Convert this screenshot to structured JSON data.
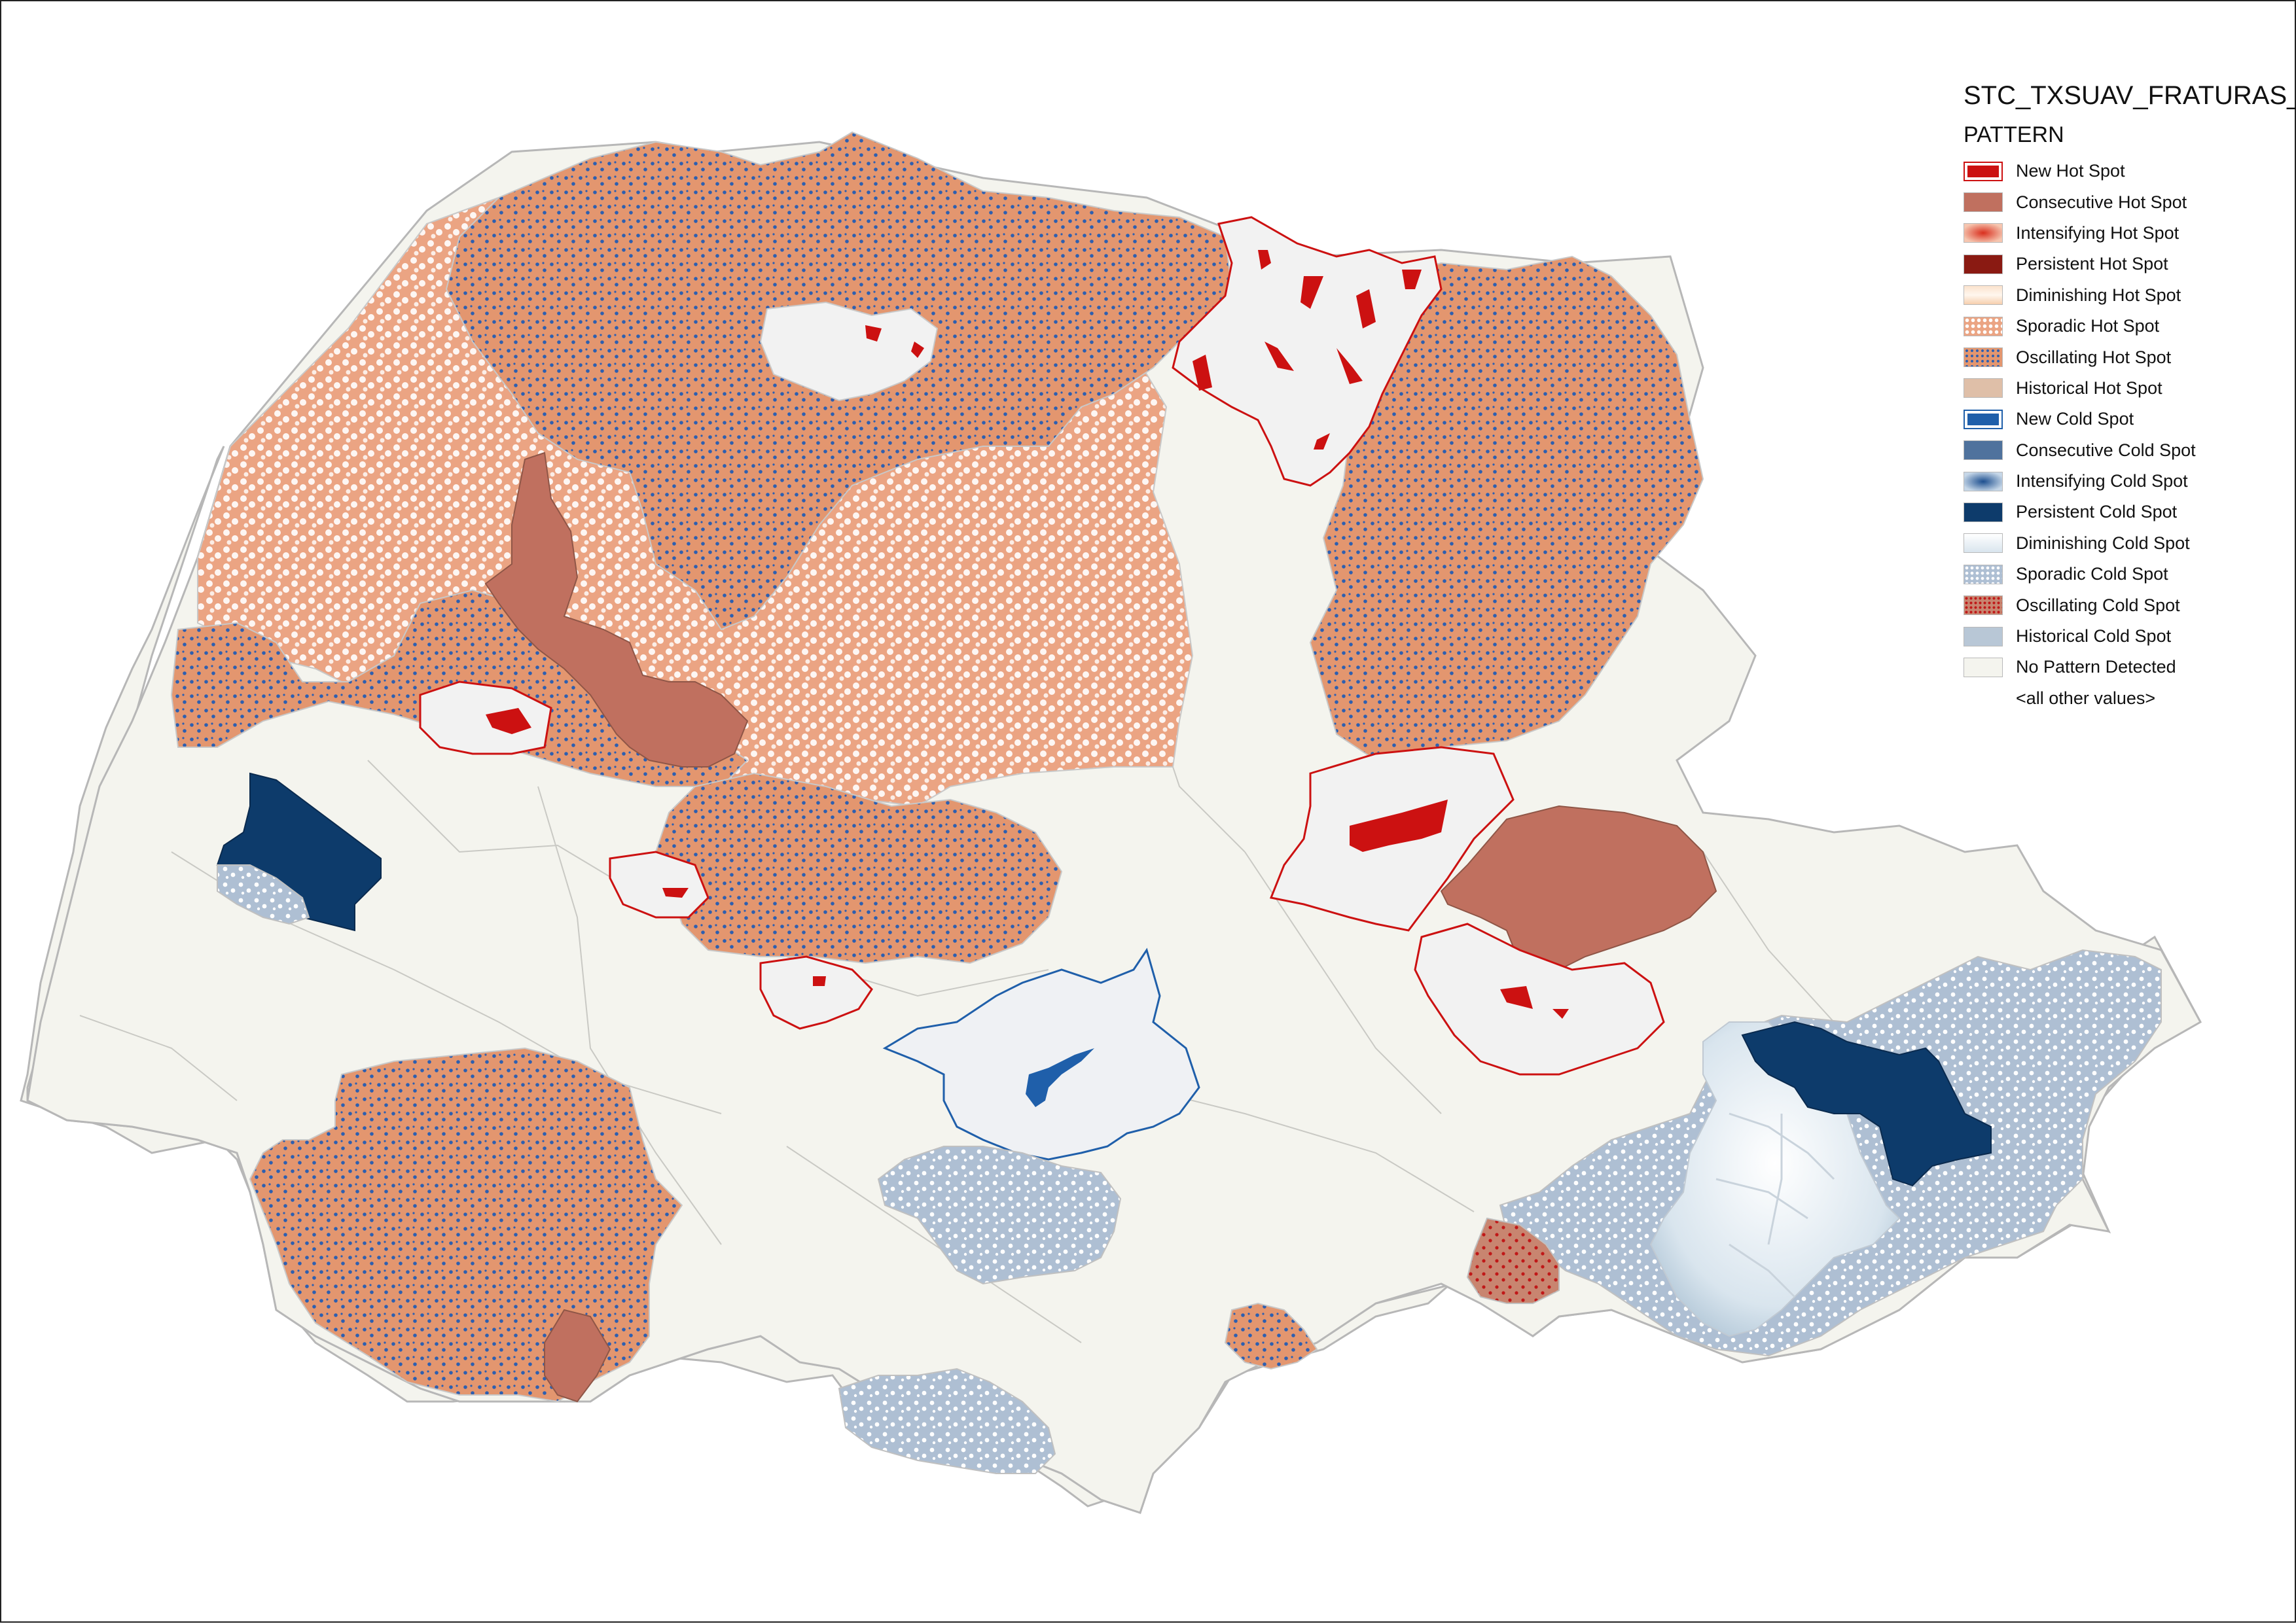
{
  "legend": {
    "title": "STC_TXSUAV_FRATURAS_",
    "field": "PATTERN",
    "items": [
      {
        "label": "New Hot Spot",
        "fill": "nh"
      },
      {
        "label": "Consecutive Hot Spot",
        "fill": "#c0705f"
      },
      {
        "label": "Intensifying Hot Spot",
        "fill": "ih"
      },
      {
        "label": "Persistent Hot Spot",
        "fill": "#8a1a12"
      },
      {
        "label": "Diminishing Hot Spot",
        "fill": "dh"
      },
      {
        "label": "Sporadic Hot Spot",
        "fill": "sh"
      },
      {
        "label": "Oscillating Hot Spot",
        "fill": "oh"
      },
      {
        "label": "Historical Hot Spot",
        "fill": "#dfbfa8"
      },
      {
        "label": "New Cold Spot",
        "fill": "nc"
      },
      {
        "label": "Consecutive Cold Spot",
        "fill": "#4f729d"
      },
      {
        "label": "Intensifying Cold Spot",
        "fill": "ic"
      },
      {
        "label": "Persistent Cold Spot",
        "fill": "#0d3b6b"
      },
      {
        "label": "Diminishing Cold Spot",
        "fill": "dc"
      },
      {
        "label": "Sporadic Cold Spot",
        "fill": "sc"
      },
      {
        "label": "Oscillating Cold Spot",
        "fill": "oc"
      },
      {
        "label": "Historical Cold Spot",
        "fill": "#b8c7d6"
      },
      {
        "label": "No Pattern Detected",
        "fill": "#f4f4ee"
      },
      {
        "label": "<all other values>",
        "fill": "none"
      }
    ]
  },
  "colors": {
    "new_hot": "#cc1111",
    "consecutive_hot": "#c0705f",
    "sporadic_hot": "#eba483",
    "oscillating_hot": "#e3966f",
    "new_cold": "#1f5faa",
    "persistent_cold": "#0d3b6b",
    "sporadic_cold": "#aebfd3",
    "diminishing_cold": "#dbe7ee",
    "oscillating_cold": "#c88570",
    "no_pattern": "#f4f4ee",
    "border": "#b7b7b7"
  }
}
